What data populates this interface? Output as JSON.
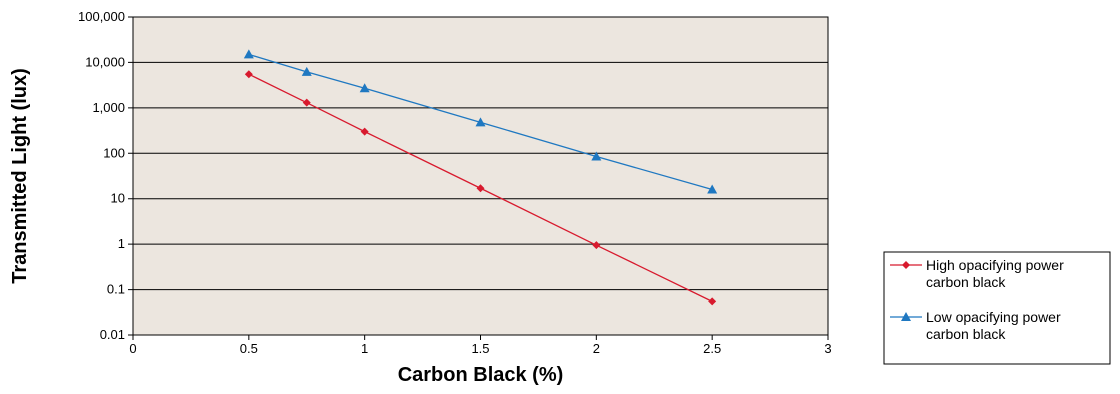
{
  "chart_data": {
    "type": "line",
    "title": "",
    "xlabel": "Carbon Black (%)",
    "ylabel": "Transmitted Light (lux)",
    "xlim": [
      0,
      3
    ],
    "ylim": [
      0.01,
      100000
    ],
    "yscale": "log",
    "grid": "horizontal",
    "background": "#ece6df",
    "x_ticks": [
      "0",
      "0.5",
      "1",
      "1.5",
      "2",
      "2.5",
      "3"
    ],
    "y_ticks": [
      "0.01",
      "0.1",
      "1",
      "10",
      "100",
      "1,000",
      "10,000",
      "100,000"
    ],
    "legend_position": "bottom-right, outside plot",
    "series": [
      {
        "name": "High opacifying power carbon black",
        "color": "#d81a2e",
        "marker": "diamond",
        "x": [
          0.5,
          0.75,
          1,
          1.5,
          2,
          2.5
        ],
        "y": [
          5500,
          1300,
          300,
          17,
          0.95,
          0.055
        ]
      },
      {
        "name": "Low opacifying power carbon black",
        "color": "#1f78c1",
        "marker": "triangle",
        "x": [
          0.5,
          0.75,
          1,
          1.5,
          2,
          2.5
        ],
        "y": [
          15000,
          6200,
          2700,
          480,
          85,
          16
        ]
      }
    ],
    "legend": {
      "entries": [
        {
          "line1": "High opacifying power",
          "line2": "carbon black"
        },
        {
          "line1": "Low opacifying power",
          "line2": "carbon black"
        }
      ]
    }
  }
}
